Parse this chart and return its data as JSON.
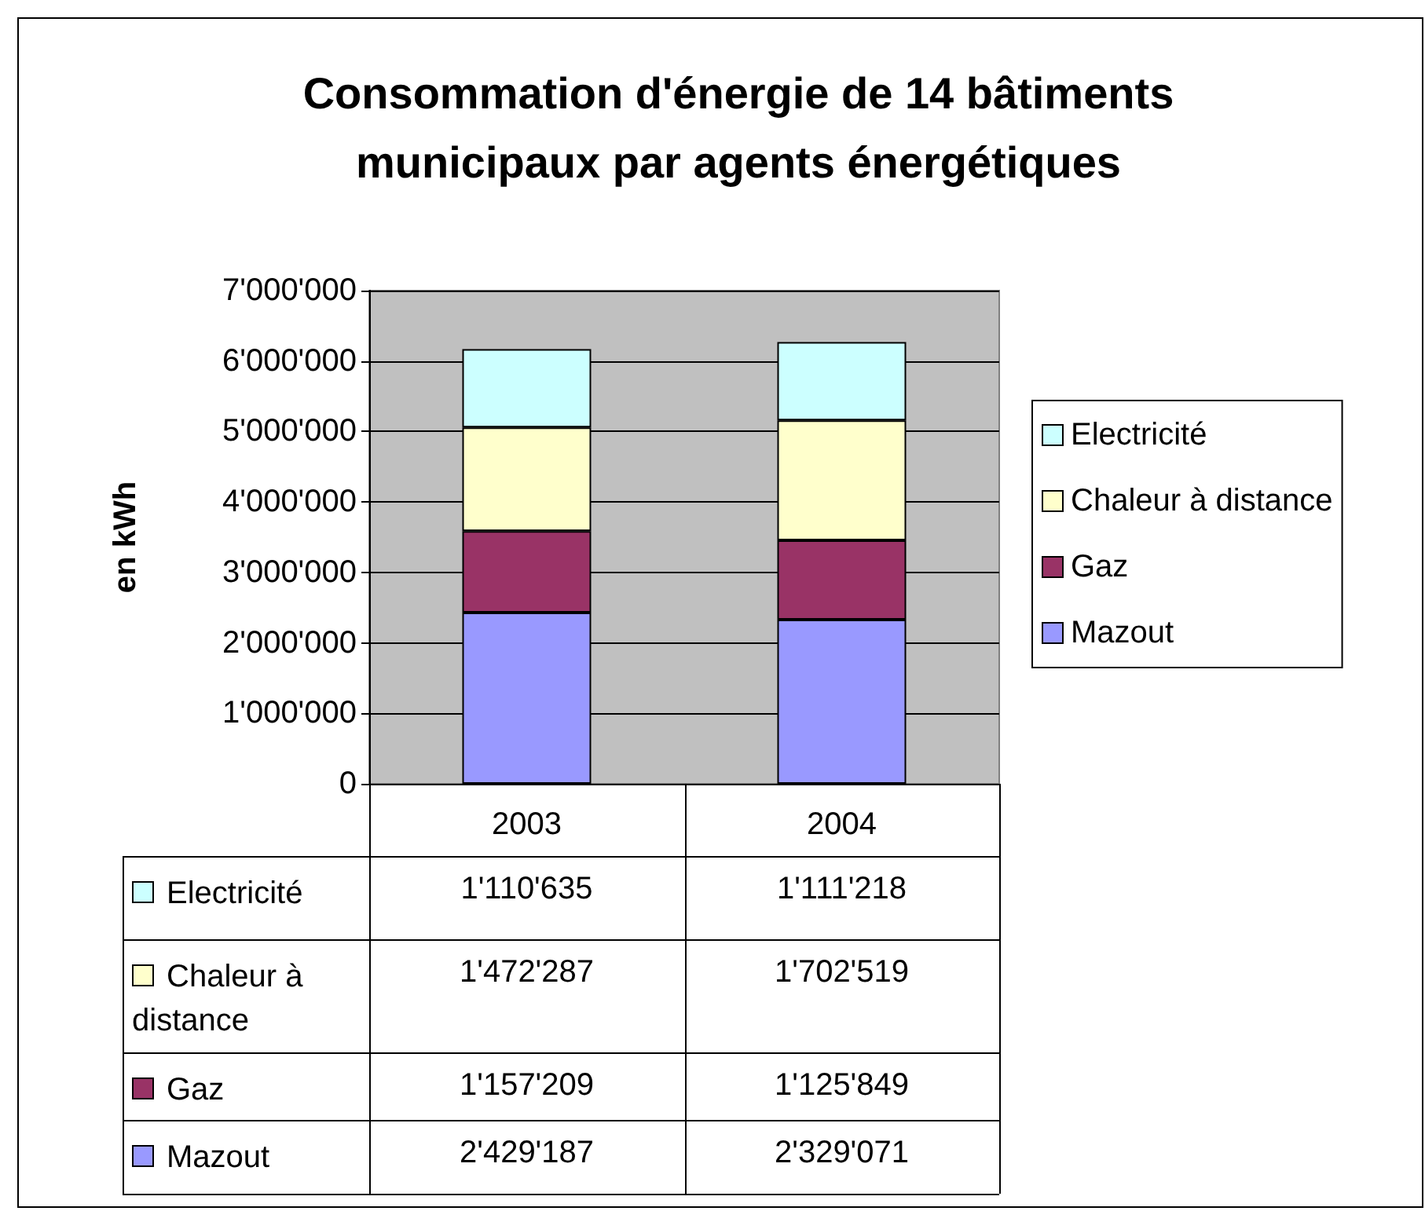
{
  "chart_data": {
    "type": "bar",
    "title": "Consommation d'énergie de 14 bâtiments municipaux par agents énergétiques",
    "ylabel": "en kWh",
    "categories": [
      "2003",
      "2004"
    ],
    "stacked": true,
    "ylim": [
      0,
      7000000
    ],
    "yticks": [
      0,
      {
        "value": 1000000,
        "label": "1'000'000"
      },
      {
        "value": 2000000,
        "label": "2'000'000"
      },
      {
        "value": 3000000,
        "label": "3'000'000"
      },
      {
        "value": 4000000,
        "label": "4'000'000"
      },
      {
        "value": 5000000,
        "label": "5'000'000"
      },
      {
        "value": 6000000,
        "label": "6'000'000"
      },
      {
        "value": 7000000,
        "label": "7'000'000"
      }
    ],
    "grid": "y",
    "legend": "right",
    "series": [
      {
        "name": "Mazout",
        "color": "#9999ff",
        "values": [
          2429187,
          2329071
        ],
        "value_labels": [
          "2'429'187",
          "2'329'071"
        ]
      },
      {
        "name": "Gaz",
        "color": "#993366",
        "values": [
          1157209,
          1125849
        ],
        "value_labels": [
          "1'157'209",
          "1'125'849"
        ]
      },
      {
        "name": "Chaleur à distance",
        "color": "#ffffcc",
        "values": [
          1472287,
          1702519
        ],
        "value_labels": [
          "1'472'287",
          "1'702'519"
        ]
      },
      {
        "name": "Electricité",
        "color": "#ccffff",
        "values": [
          1110635,
          1111218
        ],
        "value_labels": [
          "1'110'635",
          "1'111'218"
        ]
      }
    ]
  }
}
